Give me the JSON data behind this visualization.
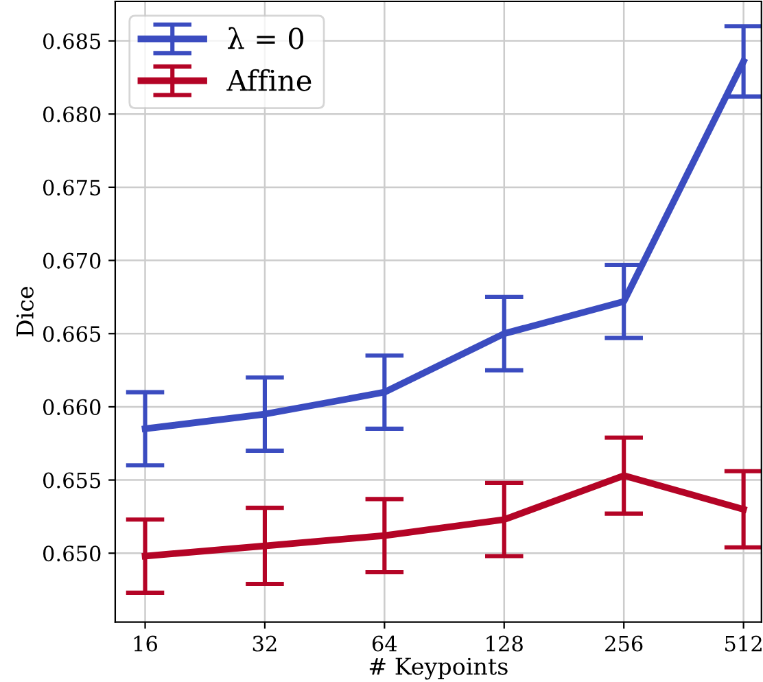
{
  "chart_data": {
    "type": "line",
    "xlabel": "# Keypoints",
    "ylabel": "Dice",
    "categories": [
      "16",
      "32",
      "64",
      "128",
      "256",
      "512"
    ],
    "series": [
      {
        "name": "λ = 0",
        "color": "#3b4cc0",
        "values": [
          0.6585,
          0.6595,
          0.661,
          0.665,
          0.6672,
          0.6836
        ],
        "errors": [
          0.0025,
          0.0025,
          0.0025,
          0.0025,
          0.0025,
          0.0024
        ]
      },
      {
        "name": "Affine",
        "color": "#b40426",
        "values": [
          0.6498,
          0.6505,
          0.6512,
          0.6523,
          0.6553,
          0.653
        ],
        "errors": [
          0.0025,
          0.0026,
          0.0025,
          0.0025,
          0.0026,
          0.0026
        ]
      }
    ],
    "ylim": [
      0.6453,
      0.6877
    ],
    "yticks": [
      {
        "value": 0.65,
        "label": "0.650"
      },
      0.655,
      {
        "value": 0.66,
        "label": "0.660"
      },
      0.665,
      {
        "value": 0.67,
        "label": "0.670"
      },
      0.675,
      {
        "value": 0.68,
        "label": "0.680"
      },
      0.685
    ],
    "grid": true,
    "legend": "top left",
    "marker": "none",
    "line_style": "solid"
  }
}
